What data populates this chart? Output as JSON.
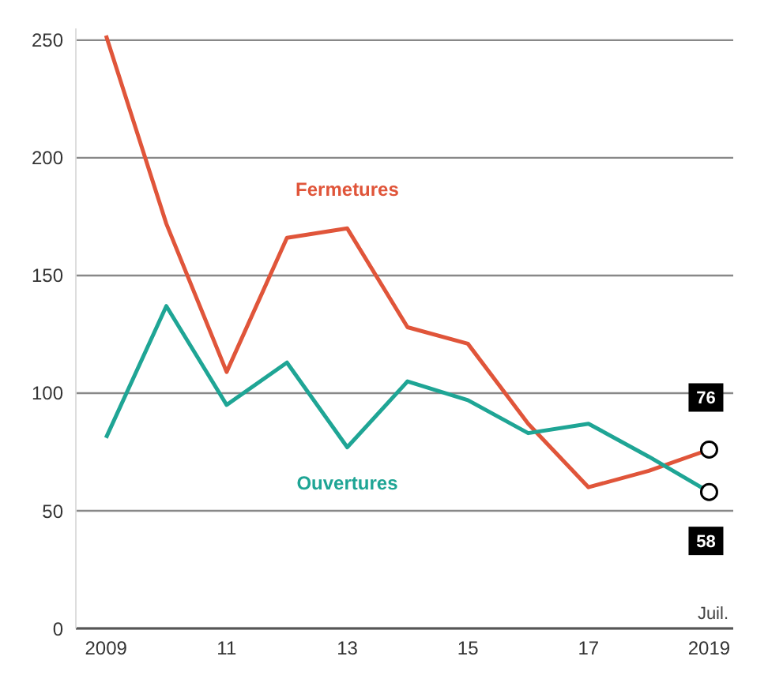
{
  "chart_data": {
    "type": "line",
    "categories": [
      "2009",
      null,
      "11",
      null,
      "13",
      null,
      "15",
      null,
      "17",
      null,
      "2019"
    ],
    "series": [
      {
        "name": "Fermetures",
        "color": "#e0553a",
        "values": [
          252,
          172,
          109,
          166,
          170,
          128,
          121,
          87,
          60,
          67,
          76
        ],
        "value_labels": [
          null,
          null,
          null,
          null,
          null,
          null,
          null,
          null,
          null,
          null,
          "76"
        ]
      },
      {
        "name": "Ouvertures",
        "color": "#1fa595",
        "values": [
          81,
          137,
          95,
          113,
          77,
          105,
          97,
          83,
          87,
          73,
          58
        ],
        "value_labels": [
          null,
          null,
          null,
          null,
          null,
          null,
          null,
          null,
          null,
          null,
          "58"
        ]
      }
    ],
    "ylim": [
      0,
      255
    ],
    "yticks": [
      0,
      50,
      100,
      150,
      200,
      250
    ],
    "grid": "y",
    "annotations": [
      "Juil."
    ]
  }
}
